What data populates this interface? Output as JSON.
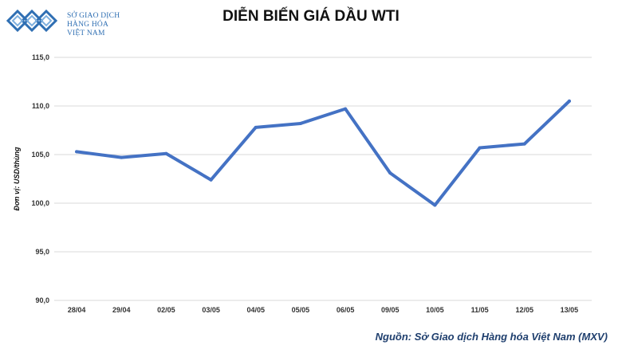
{
  "logo": {
    "line1": "SỞ GIAO DỊCH",
    "line2": "HÀNG HÓA",
    "line3": "VIỆT NAM",
    "color": "#2f6fb3",
    "icon": "diamond-chain-logo-icon"
  },
  "source_text": "Nguồn: Sở Giao dịch Hàng hóa Việt Nam (MXV)",
  "chart_data": {
    "type": "line",
    "title": "DIỄN BIẾN GIÁ DẦU WTI",
    "xlabel": "",
    "ylabel": "Đơn vị: USD/thùng",
    "categories": [
      "28/04",
      "29/04",
      "02/05",
      "03/05",
      "04/05",
      "05/05",
      "06/05",
      "09/05",
      "10/05",
      "11/05",
      "12/05",
      "13/05"
    ],
    "series": [
      {
        "values": [
          105.3,
          104.7,
          105.1,
          102.4,
          107.8,
          108.2,
          109.7,
          103.1,
          99.8,
          105.7,
          106.1,
          110.5
        ]
      }
    ],
    "ylim": [
      90,
      115
    ],
    "yticks": [
      "90,0",
      "95,0",
      "100,0",
      "105,0",
      "110,0",
      "115,0"
    ],
    "grid": true,
    "line_color": "#4472c4",
    "grid_color": "#d9d9d9"
  }
}
